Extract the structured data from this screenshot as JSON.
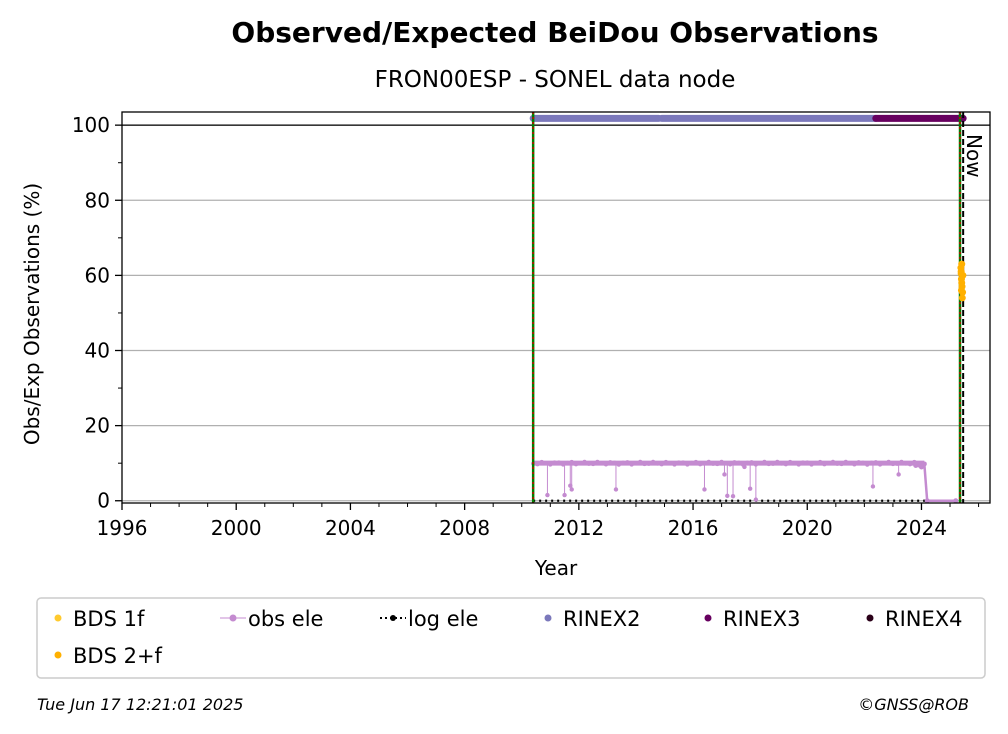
{
  "chart_data": {
    "type": "scatter",
    "title": "Observed/Expected BeiDou Observations",
    "subtitle": "FRON00ESP - SONEL data node",
    "xlabel": "Year",
    "ylabel": "Obs/Exp Observations (%)",
    "xlim": [
      1996,
      2026.4
    ],
    "ylim": [
      -0.6,
      103.5
    ],
    "xticks": [
      1996,
      2000,
      2004,
      2008,
      2012,
      2016,
      2020,
      2024
    ],
    "yticks": [
      0,
      20,
      40,
      60,
      80,
      100
    ],
    "grid": "y",
    "now_label": "Now",
    "now_year": 2025.46,
    "vertical_lines": {
      "start_year": 2010.4,
      "recent_year": 2025.35
    },
    "rinex_bars": [
      {
        "name": "RINEX2",
        "color": "#7b78bb",
        "from": 2010.4,
        "to": 2014.8
      },
      {
        "name": "RINEX2",
        "color": "#7b78bb",
        "from": 2014.9,
        "to": 2022.4
      },
      {
        "name": "RINEX3",
        "color": "#67005f",
        "from": 2022.4,
        "to": 2025.46
      }
    ],
    "obs_ele": {
      "color": "#c48bd0",
      "baseline": 10,
      "from": 2010.4,
      "to": 2024.1,
      "dips": [
        {
          "x": 2010.9,
          "y": 1.5
        },
        {
          "x": 2011.5,
          "y": 1.5
        },
        {
          "x": 2011.7,
          "y": 4
        },
        {
          "x": 2011.75,
          "y": 3
        },
        {
          "x": 2013.3,
          "y": 3
        },
        {
          "x": 2016.4,
          "y": 3
        },
        {
          "x": 2017.1,
          "y": 7
        },
        {
          "x": 2017.2,
          "y": 1.3
        },
        {
          "x": 2017.4,
          "y": 1.2
        },
        {
          "x": 2017.8,
          "y": 9
        },
        {
          "x": 2018.0,
          "y": 3.2
        },
        {
          "x": 2018.2,
          "y": 0.3
        },
        {
          "x": 2022.3,
          "y": 3.8
        },
        {
          "x": 2023.2,
          "y": 7
        }
      ],
      "tail": [
        {
          "x": 2023.8,
          "y": 9.4
        },
        {
          "x": 2024.0,
          "y": 9
        },
        {
          "x": 2024.1,
          "y": 9.8
        },
        {
          "x": 2024.2,
          "y": 0
        },
        {
          "x": 2025.2,
          "y": 0
        }
      ]
    },
    "log_ele": {
      "color": "#000000",
      "from": 2010.4,
      "to": 2025.46,
      "y": 0
    },
    "bds_points": [
      {
        "x": 2025.38,
        "y": 62
      },
      {
        "x": 2025.39,
        "y": 60.5
      },
      {
        "x": 2025.4,
        "y": 59
      },
      {
        "x": 2025.41,
        "y": 58
      },
      {
        "x": 2025.42,
        "y": 57
      },
      {
        "x": 2025.4,
        "y": 56
      },
      {
        "x": 2025.43,
        "y": 54
      },
      {
        "x": 2025.44,
        "y": 55.5
      },
      {
        "x": 2025.39,
        "y": 61
      },
      {
        "x": 2025.41,
        "y": 63
      },
      {
        "x": 2025.45,
        "y": 60
      }
    ],
    "bds_color": "#ffb000",
    "legend": [
      {
        "label": "BDS 1f",
        "color": "#ffca2e",
        "kind": "dot"
      },
      {
        "label": "obs ele",
        "color": "#c48bd0",
        "kind": "line-dot"
      },
      {
        "label": "log ele",
        "color": "#000000",
        "kind": "dotted-dot"
      },
      {
        "label": "RINEX2",
        "color": "#7b78bb",
        "kind": "dot"
      },
      {
        "label": "RINEX3",
        "color": "#67005f",
        "kind": "dot"
      },
      {
        "label": "RINEX4",
        "color": "#2a0018",
        "kind": "dot"
      },
      {
        "label": "BDS 2+f",
        "color": "#ffb000",
        "kind": "dot"
      }
    ],
    "legend_placement": "below"
  },
  "footer": {
    "timestamp": "Tue Jun 17 12:21:01 2025",
    "credit": "©GNSS@ROB"
  }
}
